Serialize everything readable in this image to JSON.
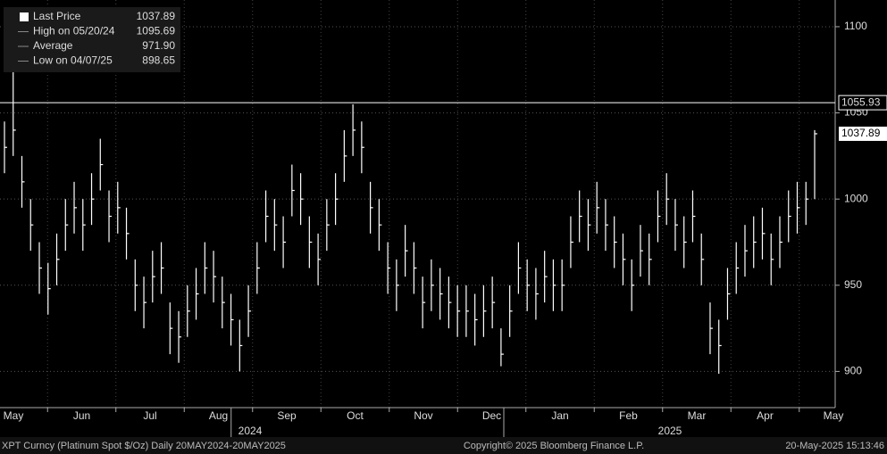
{
  "chart_data": {
    "type": "ohlc",
    "legend": [
      {
        "label": "Last Price",
        "value": "1037.89"
      },
      {
        "label": "High on 05/20/24",
        "value": "1095.69"
      },
      {
        "label": "Average",
        "value": "971.90"
      },
      {
        "label": "Low on 04/07/25",
        "value": "898.65"
      }
    ],
    "color": "#ffffff",
    "close": [
      1030,
      1040,
      1010,
      985,
      960,
      948,
      965,
      985,
      995,
      985,
      1000,
      1020,
      990,
      995,
      980,
      950,
      940,
      955,
      960,
      925,
      920,
      935,
      945,
      960,
      955,
      940,
      930,
      915,
      935,
      960,
      990,
      985,
      975,
      1005,
      1000,
      975,
      965,
      985,
      1000,
      1025,
      1040,
      1030,
      995,
      985,
      960,
      950,
      970,
      960,
      940,
      950,
      945,
      940,
      935,
      935,
      930,
      935,
      940,
      910,
      935,
      960,
      950,
      945,
      955,
      950,
      950,
      975,
      990,
      985,
      995,
      985,
      975,
      965,
      950,
      970,
      965,
      990,
      1000,
      985,
      975,
      990,
      965,
      925,
      915,
      945,
      960,
      970,
      975,
      980,
      965,
      975,
      990,
      995,
      1000,
      1037.89
    ],
    "high": [
      1045,
      1095.69,
      1025,
      1000,
      975,
      963,
      980,
      1000,
      1010,
      1000,
      1015,
      1035,
      1005,
      1010,
      995,
      965,
      955,
      970,
      975,
      940,
      935,
      950,
      960,
      975,
      970,
      955,
      945,
      930,
      950,
      975,
      1005,
      1000,
      990,
      1020,
      1015,
      990,
      980,
      1000,
      1015,
      1040,
      1055,
      1045,
      1010,
      1000,
      975,
      965,
      985,
      975,
      955,
      965,
      960,
      955,
      950,
      950,
      945,
      950,
      955,
      925,
      950,
      975,
      965,
      960,
      970,
      965,
      965,
      990,
      1005,
      1000,
      1010,
      1000,
      990,
      980,
      965,
      985,
      980,
      1005,
      1015,
      1000,
      990,
      1005,
      980,
      940,
      930,
      960,
      975,
      985,
      990,
      995,
      980,
      990,
      1005,
      1010,
      1010,
      1040
    ],
    "low": [
      1015,
      1025,
      995,
      970,
      945,
      933,
      950,
      970,
      980,
      970,
      985,
      1005,
      975,
      980,
      965,
      935,
      925,
      940,
      945,
      910,
      905,
      920,
      930,
      945,
      940,
      925,
      915,
      900,
      920,
      945,
      975,
      970,
      960,
      990,
      985,
      960,
      950,
      970,
      985,
      1010,
      1025,
      1015,
      980,
      970,
      945,
      935,
      955,
      945,
      925,
      935,
      930,
      925,
      920,
      920,
      915,
      920,
      925,
      903,
      920,
      945,
      935,
      930,
      940,
      935,
      935,
      960,
      975,
      970,
      980,
      970,
      960,
      950,
      935,
      955,
      950,
      975,
      985,
      970,
      960,
      975,
      950,
      910,
      898.65,
      930,
      945,
      955,
      960,
      965,
      950,
      960,
      975,
      980,
      985,
      1000
    ],
    "reference_line": 1055.93,
    "ylim": [
      879,
      1115.5
    ],
    "yticks": [
      900,
      950,
      1000,
      1050,
      1100
    ],
    "months": [
      "May",
      "Jun",
      "Jul",
      "Aug",
      "Sep",
      "Oct",
      "Nov",
      "Dec",
      "Jan",
      "Feb",
      "Mar",
      "Apr",
      "May"
    ],
    "years": [
      "2024",
      "2025"
    ],
    "grid": true,
    "footer": {
      "left": "XPT Curncy (Platinum Spot  $/Oz)  Daily 20MAY2024-20MAY2025",
      "center": "Copyright© 2025 Bloomberg Finance L.P.",
      "right": "20-May-2025 15:13:46"
    }
  }
}
